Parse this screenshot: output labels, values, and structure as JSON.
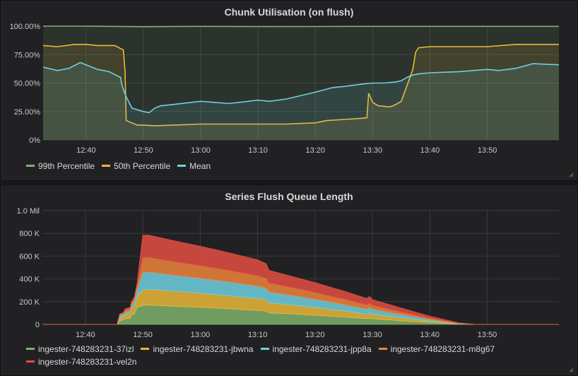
{
  "panels": [
    {
      "title": "Chunk Utilisation (on flush)",
      "resize_icon": "resize-handle-icon",
      "chart_data": {
        "type": "line",
        "fill": true,
        "x_ticks": [
          "12:40",
          "12:50",
          "13:00",
          "13:10",
          "13:20",
          "13:30",
          "13:40",
          "13:50"
        ],
        "x_tick_minutes": [
          40,
          50,
          60,
          70,
          80,
          90,
          100,
          110
        ],
        "xlim": [
          32.5,
          122.5
        ],
        "y_ticks": [
          "0%",
          "25.00%",
          "50.00%",
          "75.00%",
          "100.00%"
        ],
        "y_tick_values": [
          0,
          25,
          50,
          75,
          100
        ],
        "ylim": [
          0,
          100
        ],
        "grid": true,
        "legend": "bottom-left",
        "series": [
          {
            "name": "99th Percentile",
            "color": "#7eb26d",
            "x": [
              32.5,
              40,
              50,
              60,
              70,
              80,
              90,
              100,
              110,
              122.5
            ],
            "y": [
              100,
              100,
              99.5,
              99.8,
              99.6,
              99.7,
              99.8,
              99.8,
              99.8,
              99.8
            ]
          },
          {
            "name": "50th Percentile",
            "color": "#eab839",
            "x": [
              32.5,
              35,
              38,
              40,
              42,
              45,
              46.5,
              46.8,
              47,
              49,
              50,
              52,
              55,
              60,
              65,
              70,
              75,
              80,
              82,
              85,
              88,
              89,
              89.3,
              90,
              91,
              93,
              94,
              95,
              96,
              97,
              97.5,
              98,
              100,
              105,
              110,
              115,
              122.5
            ],
            "y": [
              83,
              82,
              84,
              84,
              83,
              83,
              79,
              60,
              17,
              13,
              13,
              12.5,
              13,
              14,
              14,
              14,
              14,
              15,
              17,
              18,
              19,
              19.5,
              41,
              33,
              30,
              29,
              31,
              34,
              48,
              62,
              77,
              81,
              82,
              82,
              82,
              84,
              84
            ]
          },
          {
            "name": "Mean",
            "color": "#6ed0e0",
            "x": [
              32.5,
              35,
              37,
              39,
              40,
              42,
              44,
              46,
              46.3,
              47,
              48,
              50,
              51,
              52,
              53,
              55,
              60,
              65,
              70,
              72,
              75,
              80,
              83,
              85,
              88,
              90,
              92,
              94,
              95,
              96,
              97,
              98,
              100,
              105,
              110,
              112,
              115,
              118,
              122.5
            ],
            "y": [
              64,
              61,
              63,
              68,
              66,
              62,
              60,
              55,
              47,
              38,
              28,
              25,
              24,
              28,
              30,
              31,
              34,
              32,
              35,
              34,
              36,
              42,
              46,
              47,
              49,
              50,
              50,
              51,
              52,
              55,
              57,
              58,
              59,
              60,
              62,
              61,
              63,
              67,
              66
            ]
          }
        ]
      }
    },
    {
      "title": "Series Flush Queue Length",
      "resize_icon": "resize-handle-icon",
      "chart_data": {
        "type": "area",
        "stacked": true,
        "x_ticks": [
          "12:40",
          "12:50",
          "13:00",
          "13:10",
          "13:20",
          "13:30",
          "13:40",
          "13:50"
        ],
        "x_tick_minutes": [
          40,
          50,
          60,
          70,
          80,
          90,
          100,
          110
        ],
        "xlim": [
          32.5,
          122.5
        ],
        "y_ticks": [
          "0",
          "200 K",
          "400 K",
          "600 K",
          "800 K",
          "1.0 Mil"
        ],
        "y_tick_values": [
          0,
          200000,
          400000,
          600000,
          800000,
          1000000
        ],
        "ylim": [
          0,
          1000000
        ],
        "grid": true,
        "legend": "bottom-left",
        "x": [
          32.5,
          41,
          44,
          45.5,
          46,
          46.5,
          47,
          47.8,
          48,
          48.5,
          49,
          50,
          51,
          55,
          60,
          65,
          70,
          71.5,
          72,
          75,
          80,
          85,
          89,
          89.5,
          90,
          95,
          100,
          105,
          108,
          110,
          122.5
        ],
        "series": [
          {
            "name": "ingester-748283231-37izl",
            "color": "#7eb26d",
            "y": [
              0,
              0,
              0,
              0,
              30000,
              40000,
              50000,
              55000,
              80000,
              90000,
              150000,
              165000,
              170000,
              160000,
              150000,
              138000,
              123000,
              118000,
              100000,
              95000,
              80000,
              65000,
              50000,
              55000,
              50000,
              32000,
              16000,
              3000,
              0,
              0,
              0
            ]
          },
          {
            "name": "ingester-748283231-jbwna",
            "color": "#eab839",
            "y": [
              0,
              0,
              0,
              0,
              30000,
              30000,
              40000,
              45000,
              60000,
              70000,
              100000,
              140000,
              140000,
              135000,
              125000,
              115000,
              105000,
              100000,
              90000,
              82000,
              70000,
              55000,
              40000,
              45000,
              40000,
              27000,
              14000,
              2500,
              0,
              0,
              0
            ]
          },
          {
            "name": "ingester-748283231-jpp8a",
            "color": "#6ed0e0",
            "y": [
              0,
              0,
              0,
              0,
              20000,
              15000,
              20000,
              20000,
              30000,
              40000,
              60000,
              150000,
              150000,
              140000,
              130000,
              120000,
              108000,
              100000,
              95000,
              85000,
              72000,
              55000,
              45000,
              48000,
              42000,
              28000,
              13000,
              2500,
              0,
              0,
              0
            ]
          },
          {
            "name": "ingester-748283231-m8g67",
            "color": "#ef843c",
            "y": [
              0,
              0,
              0,
              0,
              10000,
              10000,
              20000,
              20000,
              20000,
              25000,
              30000,
              130000,
              130000,
              120000,
              112000,
              102000,
              92000,
              87000,
              80000,
              73000,
              60000,
              48000,
              38000,
              40000,
              36000,
              23000,
              11000,
              2000,
              0,
              0,
              0
            ]
          },
          {
            "name": "ingester-748283231-vel2n",
            "color": "#e24d42",
            "y": [
              0,
              0,
              0,
              0,
              5000,
              5000,
              10000,
              10000,
              10000,
              15000,
              20000,
              200000,
              195000,
              185000,
              170000,
              155000,
              140000,
              128000,
              110000,
              100000,
              85000,
              70000,
              55000,
              58000,
              50000,
              35000,
              18000,
              3500,
              0,
              0,
              0
            ]
          }
        ]
      }
    }
  ]
}
